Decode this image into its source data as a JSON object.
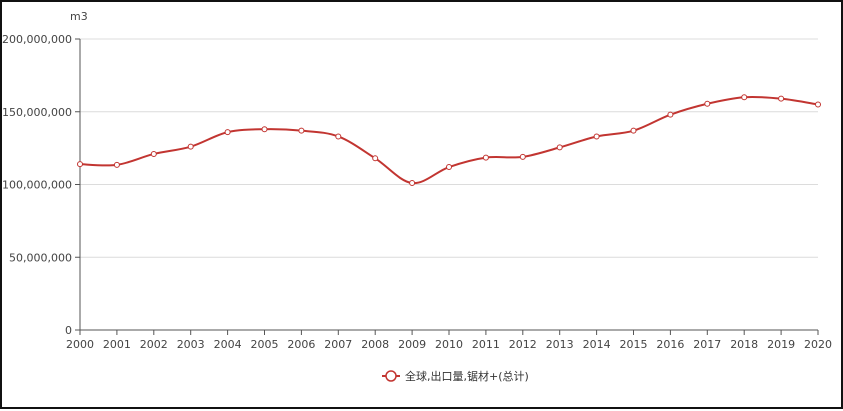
{
  "chart_data": {
    "type": "line",
    "y_unit": "m3",
    "x": [
      "2000",
      "2001",
      "2002",
      "2003",
      "2004",
      "2005",
      "2006",
      "2007",
      "2008",
      "2009",
      "2010",
      "2011",
      "2012",
      "2013",
      "2014",
      "2015",
      "2016",
      "2017",
      "2018",
      "2019",
      "2020"
    ],
    "series": [
      {
        "name": "全球,出口量,锯材+(总计)",
        "color": "#c23531",
        "values": [
          114000000,
          113500000,
          121000000,
          126000000,
          136000000,
          138000000,
          137000000,
          133000000,
          118000000,
          101000000,
          112000000,
          118500000,
          119000000,
          125500000,
          133000000,
          137000000,
          148000000,
          155500000,
          160000000,
          159000000,
          155000000
        ]
      }
    ],
    "ylim": [
      0,
      200000000
    ],
    "yticks": [
      0,
      50000000,
      100000000,
      150000000,
      200000000
    ],
    "ytick_labels": [
      "0",
      "50,000,000",
      "100,000,000",
      "150,000,000",
      "200,000,000"
    ],
    "grid": true,
    "legend_position": "bottom-center"
  }
}
